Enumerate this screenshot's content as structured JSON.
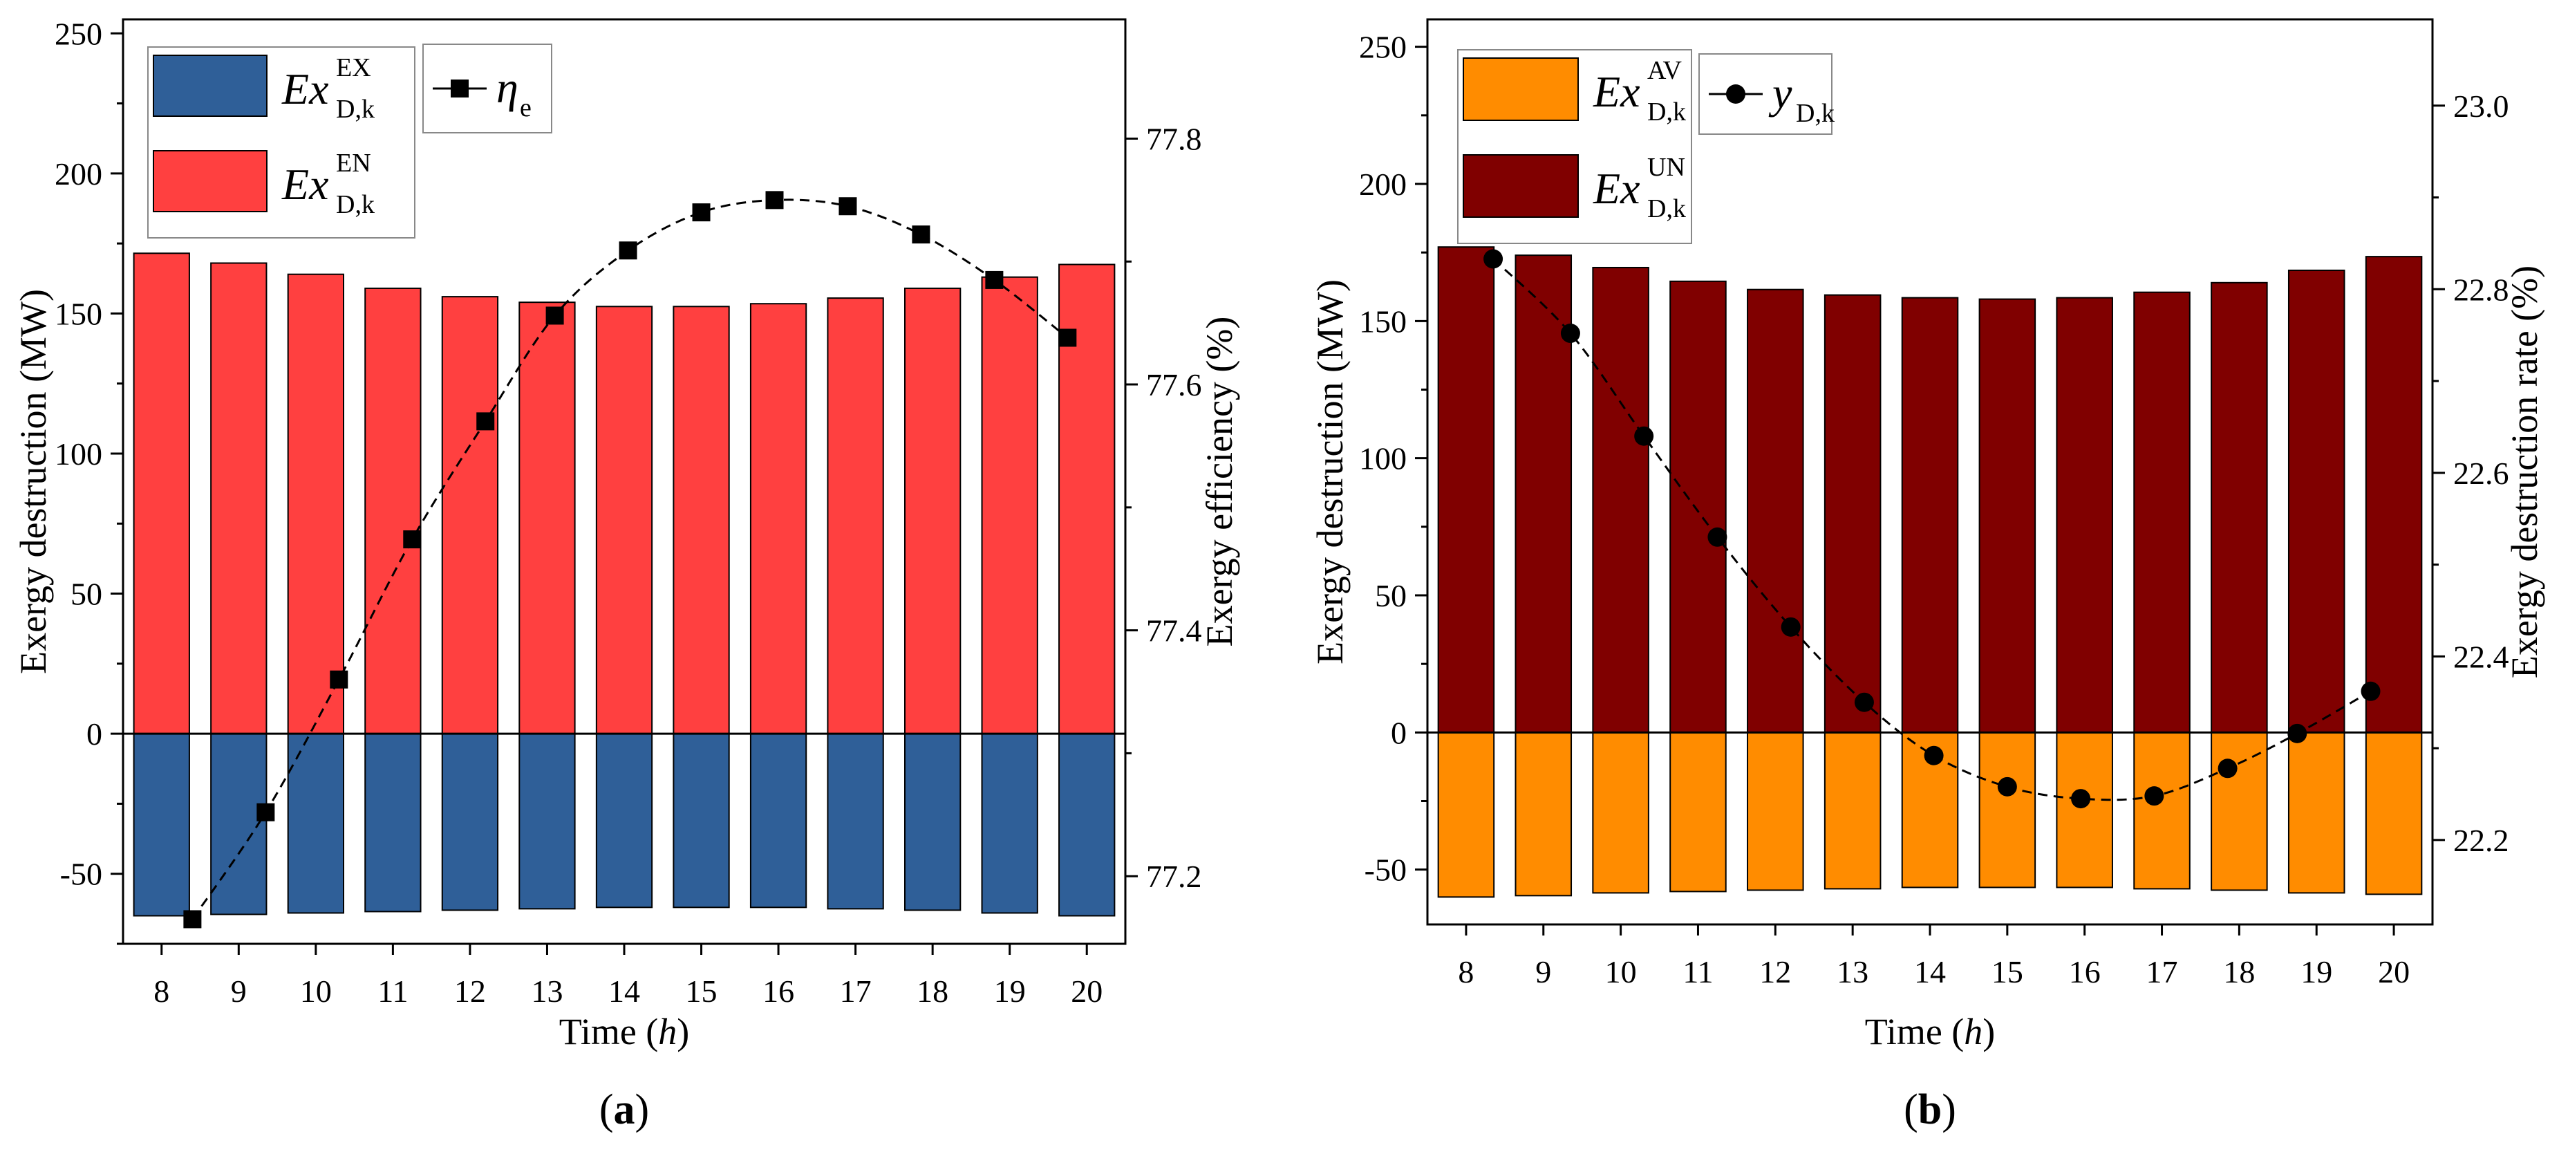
{
  "chart_data": [
    {
      "panel_label": "(a)",
      "panel_letter": "a",
      "type": "bar",
      "x": [
        8,
        9,
        10,
        11,
        12,
        13,
        14,
        15,
        16,
        17,
        18,
        19,
        20
      ],
      "xlabel": "Time (",
      "xlabel_var": "h",
      "xlabel_end": ")",
      "ylabel": "Exergy destruction (MW)",
      "ylim": [
        -75,
        255
      ],
      "yticks": [
        -50,
        0,
        50,
        100,
        150,
        200,
        250
      ],
      "y2label": "Exergy efficiency (%)",
      "y2lim": [
        77.145,
        77.897
      ],
      "y2ticks": [
        "77.2",
        "77.4",
        "77.6",
        "77.8"
      ],
      "legend_position": "top-left",
      "grid": false,
      "series": [
        {
          "name": "Ex_D,k^EX",
          "legend_main": "Ex",
          "legend_sup": "EX",
          "legend_sub": "D,k",
          "kind": "bar",
          "color": "#2f5f98",
          "values": [
            -65,
            -64.5,
            -64,
            -63.5,
            -63,
            -62.5,
            -62,
            -62,
            -62,
            -62.5,
            -63,
            -64,
            -65
          ]
        },
        {
          "name": "Ex_D,k^EN",
          "legend_main": "Ex",
          "legend_sup": "EN",
          "legend_sub": "D,k",
          "kind": "bar",
          "color": "#ff4040",
          "values": [
            171.5,
            168,
            164,
            159,
            156,
            154,
            152.5,
            152.5,
            153.5,
            155.5,
            159,
            163,
            167.5
          ]
        },
        {
          "name": "eta_e",
          "legend_main": "η",
          "legend_sub": "e",
          "kind": "line",
          "marker": "square",
          "axis": "right",
          "color": "#000000",
          "x": [
            8.4,
            9.35,
            10.3,
            11.25,
            12.2,
            13.1,
            14.05,
            15.0,
            15.95,
            16.9,
            17.85,
            18.8,
            19.75
          ],
          "values": [
            77.165,
            77.252,
            77.36,
            77.474,
            77.57,
            77.656,
            77.709,
            77.74,
            77.75,
            77.745,
            77.722,
            77.685,
            77.638
          ]
        }
      ]
    },
    {
      "panel_label": "(b)",
      "panel_letter": "b",
      "type": "bar",
      "x": [
        8,
        9,
        10,
        11,
        12,
        13,
        14,
        15,
        16,
        17,
        18,
        19,
        20
      ],
      "xlabel": "Time (",
      "xlabel_var": "h",
      "xlabel_end": ")",
      "ylabel": "Exergy destruction (MW)",
      "ylim": [
        -70,
        260
      ],
      "yticks": [
        -50,
        0,
        50,
        100,
        150,
        200,
        250
      ],
      "y2label": "Exergy destruction rate (%)",
      "y2lim": [
        22.108,
        23.094
      ],
      "y2ticks": [
        "22.2",
        "22.4",
        "22.6",
        "22.8",
        "23.0"
      ],
      "legend_position": "top-left",
      "grid": false,
      "series": [
        {
          "name": "Ex_D,k^AV",
          "legend_main": "Ex",
          "legend_sup": "AV",
          "legend_sub": "D,k",
          "kind": "bar",
          "color": "#ff8c00",
          "values": [
            -60,
            -59.5,
            -58.5,
            -58,
            -57.5,
            -57,
            -56.5,
            -56.5,
            -56.5,
            -57,
            -57.5,
            -58.5,
            -59
          ]
        },
        {
          "name": "Ex_D,k^UN",
          "legend_main": "Ex",
          "legend_sup": "UN",
          "legend_sub": "D,k",
          "kind": "bar",
          "color": "#800000",
          "values": [
            177,
            174,
            169.5,
            164.5,
            161.5,
            159.5,
            158.5,
            158,
            158.5,
            160.5,
            164,
            168.5,
            173.5
          ]
        },
        {
          "name": "y_D,k",
          "legend_main": "y",
          "legend_sub": "D,k",
          "kind": "line",
          "marker": "circle",
          "axis": "right",
          "color": "#000000",
          "x": [
            8.35,
            9.35,
            10.3,
            11.25,
            12.2,
            13.15,
            14.05,
            15.0,
            15.95,
            16.9,
            17.85,
            18.75,
            19.7
          ],
          "values": [
            22.833,
            22.752,
            22.64,
            22.53,
            22.432,
            22.35,
            22.292,
            22.258,
            22.245,
            22.248,
            22.278,
            22.316,
            22.362
          ]
        }
      ]
    }
  ]
}
